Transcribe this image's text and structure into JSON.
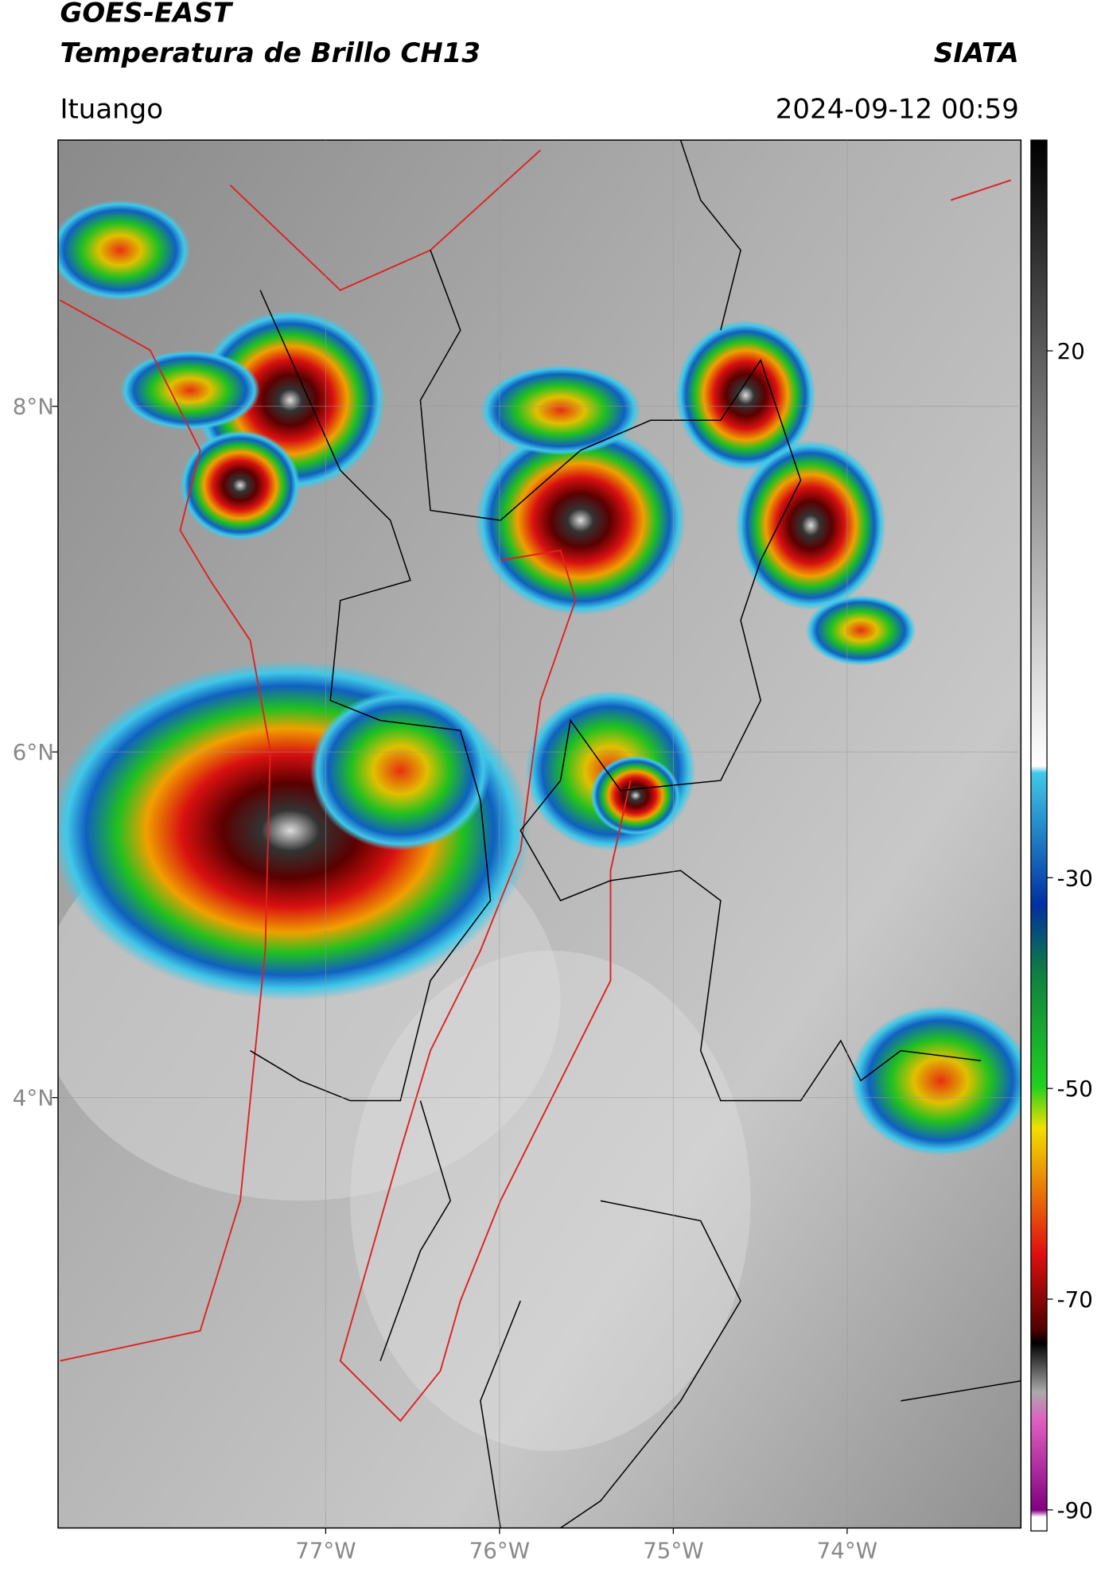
{
  "header": {
    "title": "GOES-EAST",
    "subtitle": "Temperatura de Brillo CH13",
    "brand": "SIATA",
    "location": "Ituango",
    "timestamp": "2024-09-12 00:59"
  },
  "map": {
    "xlim": [
      -78.54,
      -73.0
    ],
    "ylim": [
      1.51,
      9.54
    ],
    "xticks": [
      {
        "value": -77,
        "label": "77°W"
      },
      {
        "value": -76,
        "label": "76°W"
      },
      {
        "value": -75,
        "label": "75°W"
      },
      {
        "value": -74,
        "label": "74°W"
      }
    ],
    "yticks": [
      {
        "value": 8,
        "label": "8°N"
      },
      {
        "value": 6,
        "label": "6°N"
      },
      {
        "value": 4,
        "label": "4°N"
      }
    ]
  },
  "colorbar": {
    "lim": [
      -92,
      40
    ],
    "ticks": [
      20,
      -30,
      -50,
      -70,
      -90
    ]
  }
}
